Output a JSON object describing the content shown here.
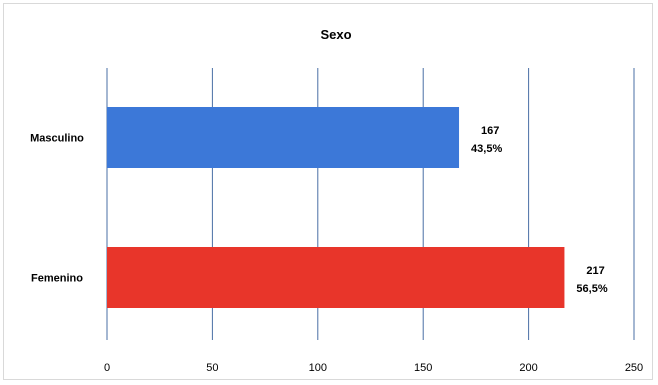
{
  "chart_data": {
    "type": "bar",
    "orientation": "horizontal",
    "title": "Sexo",
    "xlabel": "",
    "ylabel": "",
    "categories": [
      "Masculino",
      "Femenino"
    ],
    "values": [
      167,
      217
    ],
    "percent_labels": [
      "43,5%",
      "56,5%"
    ],
    "colors": [
      "#3c78d8",
      "#e8352a"
    ],
    "xlim": [
      0,
      250
    ],
    "xticks": [
      0,
      50,
      100,
      150,
      200,
      250
    ],
    "grid": "vertical",
    "legend": "none"
  }
}
